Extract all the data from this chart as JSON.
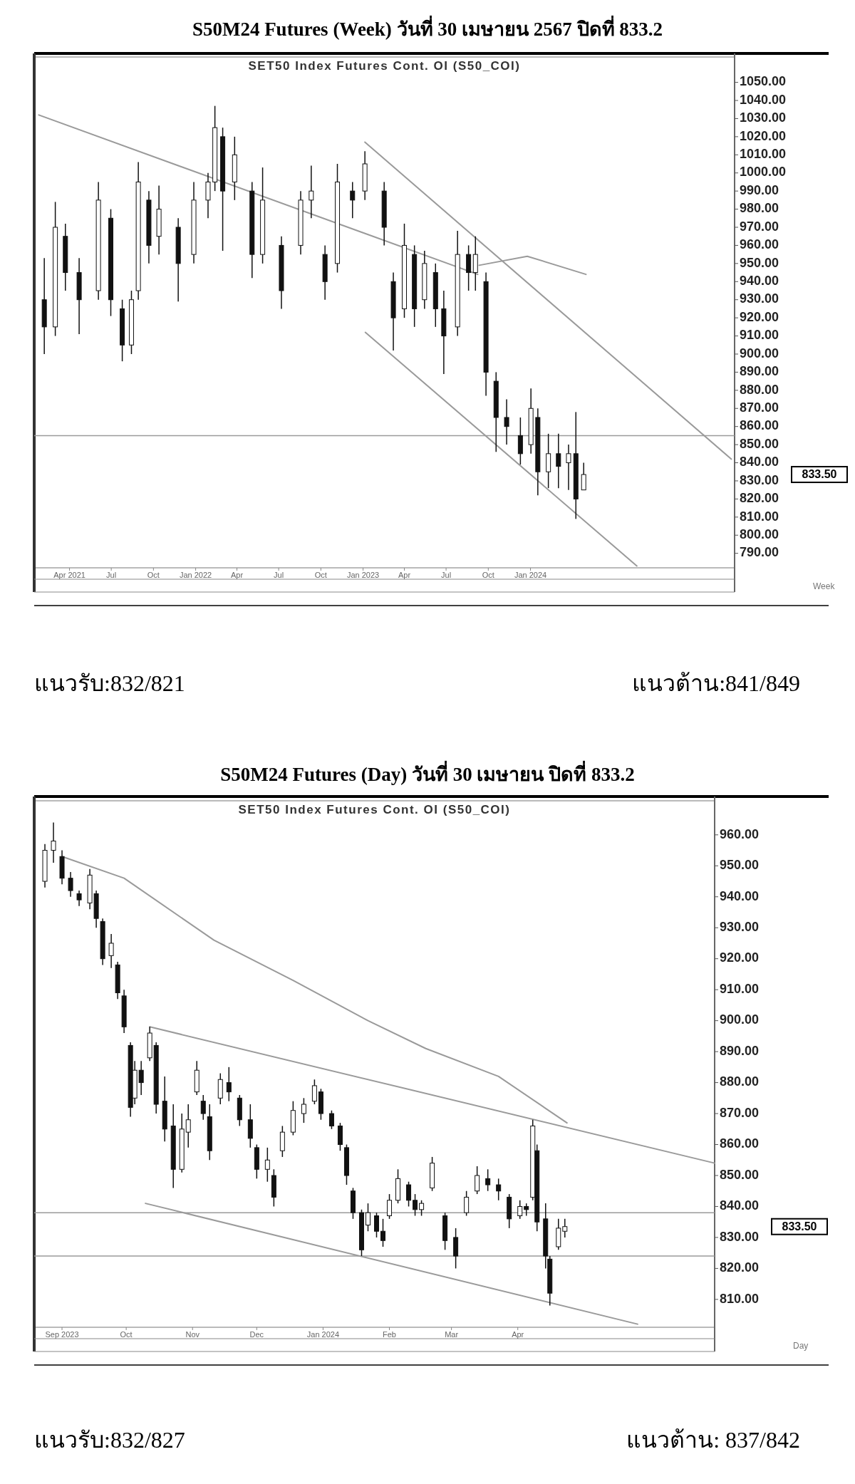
{
  "chart_data": [
    {
      "type": "candlestick",
      "title": "S50M24 Futures (Week) วันที่ 30 เมษายน 2567 ปิดที่ 833.2",
      "subtitle": "SET50 Index Futures Cont. OI (S50_COI)",
      "xlabel": "Week",
      "color": "#111111",
      "x": [
        "2021-02-05",
        "2021-03-01",
        "2021-03-23",
        "2021-04-22",
        "2021-06-03",
        "2021-06-30",
        "2021-07-25",
        "2021-08-14",
        "2021-08-29",
        "2021-09-21",
        "2021-10-13",
        "2021-11-24",
        "2021-12-28",
        "2022-01-28",
        "2022-02-12",
        "2022-03-01",
        "2022-03-27",
        "2022-05-04",
        "2022-05-27",
        "2022-07-07",
        "2022-08-18",
        "2022-09-10",
        "2022-10-10",
        "2022-11-06",
        "2022-12-09",
        "2023-01-05",
        "2023-02-16",
        "2023-03-08",
        "2023-04-01",
        "2023-04-23",
        "2023-05-15",
        "2023-06-08",
        "2023-06-26",
        "2023-07-26",
        "2023-08-19",
        "2023-09-03",
        "2023-09-26",
        "2023-10-18",
        "2023-11-10",
        "2023-12-10",
        "2024-01-02",
        "2024-01-17",
        "2024-02-09",
        "2024-03-02",
        "2024-03-24",
        "2024-04-09",
        "2024-04-26"
      ],
      "ohlc": [
        [
          930,
          953,
          900,
          915
        ],
        [
          915,
          984,
          910,
          970
        ],
        [
          965,
          972,
          935,
          945
        ],
        [
          945,
          953,
          911,
          930
        ],
        [
          935,
          995,
          930,
          985
        ],
        [
          975,
          980,
          921,
          930
        ],
        [
          925,
          930,
          896,
          905
        ],
        [
          905,
          935,
          900,
          930
        ],
        [
          935,
          1006,
          930,
          995
        ],
        [
          985,
          990,
          950,
          960
        ],
        [
          965,
          993,
          955,
          980
        ],
        [
          970,
          975,
          929,
          950
        ],
        [
          955,
          995,
          950,
          985
        ],
        [
          985,
          1000,
          975,
          995
        ],
        [
          995,
          1037,
          990,
          1025
        ],
        [
          1020,
          1025,
          957,
          990
        ],
        [
          995,
          1020,
          985,
          1010
        ],
        [
          990,
          995,
          942,
          955
        ],
        [
          955,
          1003,
          950,
          985
        ],
        [
          960,
          965,
          925,
          935
        ],
        [
          960,
          990,
          955,
          985
        ],
        [
          985,
          1004,
          975,
          990
        ],
        [
          955,
          960,
          930,
          940
        ],
        [
          950,
          1005,
          945,
          995
        ],
        [
          990,
          995,
          975,
          985
        ],
        [
          990,
          1012,
          985,
          1005
        ],
        [
          990,
          995,
          960,
          970
        ],
        [
          940,
          945,
          902,
          920
        ],
        [
          925,
          972,
          920,
          960
        ],
        [
          955,
          960,
          915,
          925
        ],
        [
          930,
          957,
          925,
          950
        ],
        [
          945,
          950,
          915,
          925
        ],
        [
          925,
          935,
          889,
          910
        ],
        [
          915,
          968,
          910,
          955
        ],
        [
          955,
          960,
          935,
          945
        ],
        [
          945,
          965,
          935,
          955
        ],
        [
          940,
          945,
          877,
          890
        ],
        [
          885,
          890,
          846,
          865
        ],
        [
          865,
          875,
          850,
          860
        ],
        [
          855,
          865,
          839,
          845
        ],
        [
          850,
          881,
          845,
          870
        ],
        [
          865,
          870,
          822,
          835
        ],
        [
          835,
          856,
          826,
          845
        ],
        [
          845,
          856,
          826,
          838
        ],
        [
          840,
          850,
          825,
          845
        ],
        [
          845,
          868,
          809,
          820
        ],
        [
          825,
          840,
          825,
          833.5
        ]
      ],
      "series": [
        {
          "type": "line",
          "color": "#9a9a9a",
          "x": [
            "2023-01-05",
            "2025-03-14"
          ],
          "values": [
            1017,
            842
          ]
        },
        {
          "type": "line",
          "color": "#9a9a9a",
          "x": [
            "2023-01-06",
            "2024-08-20"
          ],
          "values": [
            912,
            783
          ]
        },
        {
          "type": "line",
          "color": "#9a9a9a",
          "x": [
            "2021-01-24",
            "2023-09-08"
          ],
          "values": [
            1032,
            944
          ]
        },
        {
          "type": "line",
          "color": "#9a9a9a",
          "x": [
            "2023-09-11",
            "2023-12-25",
            "2024-05-01"
          ],
          "values": [
            949,
            954,
            944
          ]
        }
      ],
      "ref_lines": [
        {
          "axis": "y",
          "value": 855,
          "color": "#9a9a9a"
        }
      ],
      "xlim": [
        "2021-01-14",
        "2025-03-21"
      ],
      "ylim": [
        782,
        1064
      ],
      "xticks": [
        {
          "value": "2021-04-01",
          "label": "Apr 2021"
        },
        {
          "value": "2021-07-01",
          "label": "Jul"
        },
        {
          "value": "2021-10-01",
          "label": "Oct"
        },
        {
          "value": "2022-01-01",
          "label": "Jan 2022"
        },
        {
          "value": "2022-04-01",
          "label": "Apr"
        },
        {
          "value": "2022-07-01",
          "label": "Jul"
        },
        {
          "value": "2022-10-01",
          "label": "Oct"
        },
        {
          "value": "2023-01-01",
          "label": "Jan 2023"
        },
        {
          "value": "2023-04-01",
          "label": "Apr"
        },
        {
          "value": "2023-07-01",
          "label": "Jul"
        },
        {
          "value": "2023-10-01",
          "label": "Oct"
        },
        {
          "value": "2024-01-01",
          "label": "Jan 2024"
        }
      ],
      "yticks": [
        {
          "value": 790,
          "label": "790.00"
        },
        {
          "value": 800,
          "label": "800.00"
        },
        {
          "value": 810,
          "label": "810.00"
        },
        {
          "value": 820,
          "label": "820.00"
        },
        {
          "value": 830,
          "label": "830.00"
        },
        {
          "value": 840,
          "label": "840.00"
        },
        {
          "value": 850,
          "label": "850.00"
        },
        {
          "value": 860,
          "label": "860.00"
        },
        {
          "value": 870,
          "label": "870.00"
        },
        {
          "value": 880,
          "label": "880.00"
        },
        {
          "value": 890,
          "label": "890.00"
        },
        {
          "value": 900,
          "label": "900.00"
        },
        {
          "value": 910,
          "label": "910.00"
        },
        {
          "value": 920,
          "label": "920.00"
        },
        {
          "value": 930,
          "label": "930.00"
        },
        {
          "value": 940,
          "label": "940.00"
        },
        {
          "value": 950,
          "label": "950.00"
        },
        {
          "value": 960,
          "label": "960.00"
        },
        {
          "value": 970,
          "label": "970.00"
        },
        {
          "value": 980,
          "label": "980.00"
        },
        {
          "value": 990,
          "label": "990.00"
        },
        {
          "value": 1000,
          "label": "1000.00"
        },
        {
          "value": 1010,
          "label": "1010.00"
        },
        {
          "value": 1020,
          "label": "1020.00"
        },
        {
          "value": 1030,
          "label": "1030.00"
        },
        {
          "value": 1040,
          "label": "1040.00"
        },
        {
          "value": 1050,
          "label": "1050.00"
        }
      ],
      "annotations": [
        "833.50",
        "แนวรับ:832/821",
        "แนวต้าน:841/849"
      ]
    },
    {
      "type": "candlestick",
      "title": "S50M24 Futures (Day) วันที่ 30 เมษายน ปิดที่ 833.2",
      "subtitle": "SET50 Index Futures Cont. OI (S50_COI)",
      "xlabel": "Day",
      "color": "#111111",
      "x": [
        "2023-08-24",
        "2023-08-28",
        "2023-09-01",
        "2023-09-05",
        "2023-09-09",
        "2023-09-14",
        "2023-09-17",
        "2023-09-20",
        "2023-09-24",
        "2023-09-27",
        "2023-09-30",
        "2023-10-03",
        "2023-10-05",
        "2023-10-08",
        "2023-10-12",
        "2023-10-15",
        "2023-10-19",
        "2023-10-23",
        "2023-10-27",
        "2023-10-30",
        "2023-11-03",
        "2023-11-06",
        "2023-11-09",
        "2023-11-14",
        "2023-11-18",
        "2023-11-23",
        "2023-11-28",
        "2023-12-01",
        "2023-12-06",
        "2023-12-09",
        "2023-12-13",
        "2023-12-18",
        "2023-12-23",
        "2023-12-28",
        "2023-12-31",
        "2024-01-05",
        "2024-01-09",
        "2024-01-12",
        "2024-01-15",
        "2024-01-19",
        "2024-01-22",
        "2024-01-26",
        "2024-01-29",
        "2024-02-01",
        "2024-02-05",
        "2024-02-10",
        "2024-02-13",
        "2024-02-16",
        "2024-02-21",
        "2024-02-27",
        "2024-03-03",
        "2024-03-08",
        "2024-03-13",
        "2024-03-18",
        "2024-03-23",
        "2024-03-28",
        "2024-04-02",
        "2024-04-05",
        "2024-04-08",
        "2024-04-10",
        "2024-04-14",
        "2024-04-16",
        "2024-04-20",
        "2024-04-23"
      ],
      "ohlc": [
        [
          945,
          957,
          943,
          955
        ],
        [
          955,
          964,
          951,
          958
        ],
        [
          953,
          955,
          944,
          946
        ],
        [
          946,
          948,
          940,
          942
        ],
        [
          941,
          942,
          937,
          939
        ],
        [
          938,
          949,
          936,
          947
        ],
        [
          941,
          942,
          930,
          933
        ],
        [
          932,
          933,
          918,
          920
        ],
        [
          921,
          928,
          917,
          925
        ],
        [
          918,
          919,
          907,
          909
        ],
        [
          908,
          910,
          896,
          898
        ],
        [
          892,
          893,
          869,
          872
        ],
        [
          875,
          887,
          873,
          884
        ],
        [
          884,
          887,
          876,
          880
        ],
        [
          888,
          898,
          887,
          896
        ],
        [
          892,
          893,
          870,
          873
        ],
        [
          874,
          882,
          861,
          865
        ],
        [
          866,
          873,
          846,
          852
        ],
        [
          852,
          870,
          851,
          865
        ],
        [
          864,
          873,
          859,
          868
        ],
        [
          877,
          887,
          876,
          884
        ],
        [
          874,
          876,
          868,
          870
        ],
        [
          869,
          873,
          855,
          858
        ],
        [
          875,
          883,
          873,
          881
        ],
        [
          880,
          885,
          874,
          877
        ],
        [
          875,
          876,
          866,
          868
        ],
        [
          868,
          873,
          859,
          862
        ],
        [
          859,
          860,
          849,
          852
        ],
        [
          852,
          859,
          848,
          855
        ],
        [
          850,
          852,
          840,
          843
        ],
        [
          858,
          866,
          856,
          864
        ],
        [
          864,
          874,
          863,
          871
        ],
        [
          870,
          875,
          867,
          873
        ],
        [
          874,
          881,
          873,
          879
        ],
        [
          877,
          878,
          868,
          870
        ],
        [
          870,
          871,
          865,
          866
        ],
        [
          866,
          867,
          858,
          860
        ],
        [
          859,
          860,
          847,
          850
        ],
        [
          845,
          846,
          836,
          838
        ],
        [
          838,
          839,
          824,
          826
        ],
        [
          834,
          841,
          832,
          838
        ],
        [
          837,
          838,
          830,
          832
        ],
        [
          832,
          836,
          827,
          829
        ],
        [
          837,
          844,
          836,
          842
        ],
        [
          842,
          852,
          841,
          849
        ],
        [
          847,
          848,
          840,
          842
        ],
        [
          842,
          844,
          837,
          839
        ],
        [
          839,
          842,
          837,
          841
        ],
        [
          846,
          856,
          845,
          854
        ],
        [
          837,
          838,
          826,
          829
        ],
        [
          830,
          833,
          820,
          824
        ],
        [
          838,
          845,
          837,
          843
        ],
        [
          845,
          853,
          844,
          850
        ],
        [
          849,
          852,
          845,
          847
        ],
        [
          847,
          849,
          842,
          845
        ],
        [
          843,
          844,
          833,
          836
        ],
        [
          837,
          842,
          836,
          840
        ],
        [
          840,
          841,
          837,
          839
        ],
        [
          843,
          868,
          842,
          866
        ],
        [
          858,
          860,
          832,
          835
        ],
        [
          836,
          841,
          820,
          824
        ],
        [
          823,
          824,
          808,
          812
        ],
        [
          827,
          836,
          826,
          833
        ],
        [
          832,
          836,
          830,
          833.5
        ]
      ],
      "series": [
        {
          "type": "line",
          "color": "#9a9a9a",
          "x": [
            "2023-09-01",
            "2023-09-30",
            "2023-11-11",
            "2023-12-18",
            "2024-01-22",
            "2024-02-18",
            "2024-03-23",
            "2024-04-24"
          ],
          "values": [
            953,
            946,
            926,
            913,
            900,
            891,
            882,
            867
          ]
        },
        {
          "type": "line",
          "color": "#9a9a9a",
          "x": [
            "2023-10-12",
            "2024-07-02"
          ],
          "values": [
            898,
            854
          ]
        },
        {
          "type": "line",
          "color": "#9a9a9a",
          "x": [
            "2023-10-10",
            "2024-05-27"
          ],
          "values": [
            841,
            802
          ]
        }
      ],
      "ref_lines": [
        {
          "axis": "y",
          "value": 838,
          "color": "#9a9a9a"
        },
        {
          "axis": "y",
          "value": 824,
          "color": "#9a9a9a"
        }
      ],
      "xlim": [
        "2023-08-19",
        "2024-07-02"
      ],
      "ylim": [
        801,
        971
      ],
      "xticks": [
        {
          "value": "2023-09-01",
          "label": "Sep 2023"
        },
        {
          "value": "2023-10-01",
          "label": "Oct"
        },
        {
          "value": "2023-11-01",
          "label": "Nov"
        },
        {
          "value": "2023-12-01",
          "label": "Dec"
        },
        {
          "value": "2024-01-01",
          "label": "Jan 2024"
        },
        {
          "value": "2024-02-01",
          "label": "Feb"
        },
        {
          "value": "2024-03-01",
          "label": "Mar"
        },
        {
          "value": "2024-04-01",
          "label": "Apr"
        }
      ],
      "yticks": [
        {
          "value": 810,
          "label": "810.00"
        },
        {
          "value": 820,
          "label": "820.00"
        },
        {
          "value": 830,
          "label": "830.00"
        },
        {
          "value": 840,
          "label": "840.00"
        },
        {
          "value": 850,
          "label": "850.00"
        },
        {
          "value": 860,
          "label": "860.00"
        },
        {
          "value": 870,
          "label": "870.00"
        },
        {
          "value": 880,
          "label": "880.00"
        },
        {
          "value": 890,
          "label": "890.00"
        },
        {
          "value": 900,
          "label": "900.00"
        },
        {
          "value": 910,
          "label": "910.00"
        },
        {
          "value": 920,
          "label": "920.00"
        },
        {
          "value": 930,
          "label": "930.00"
        },
        {
          "value": 940,
          "label": "940.00"
        },
        {
          "value": 950,
          "label": "950.00"
        },
        {
          "value": 960,
          "label": "960.00"
        }
      ],
      "annotations": [
        "833.50",
        "แนวรับ:832/827",
        "แนวต้าน: 837/842"
      ]
    }
  ]
}
